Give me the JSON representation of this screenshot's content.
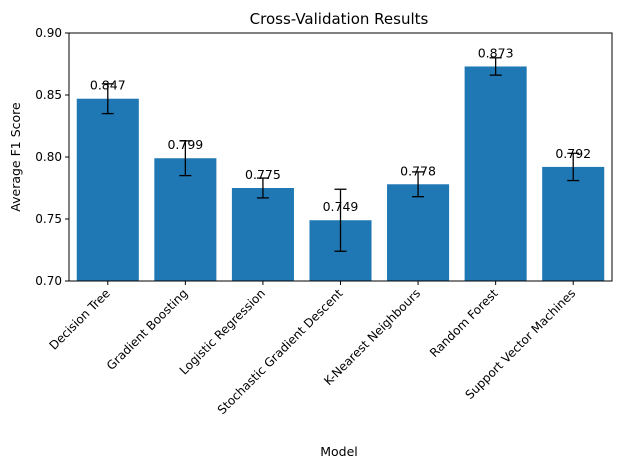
{
  "chart_data": {
    "type": "bar",
    "title": "Cross-Validation Results",
    "xlabel": "Model",
    "ylabel": "Average F1 Score",
    "ylim": [
      0.7,
      0.9
    ],
    "yticks": [
      "0.70",
      "0.75",
      "0.80",
      "0.85",
      "0.90"
    ],
    "categories": [
      "Decision Tree",
      "Gradient Boosting",
      "Logistic Regression",
      "Stochastic Gradient Descent",
      "K-Nearest Neighbours",
      "Random Forest",
      "Support Vector Machines"
    ],
    "values": [
      0.847,
      0.799,
      0.775,
      0.749,
      0.778,
      0.873,
      0.792
    ],
    "value_labels": [
      "0.847",
      "0.799",
      "0.775",
      "0.749",
      "0.778",
      "0.873",
      "0.792"
    ],
    "errors": [
      0.012,
      0.014,
      0.008,
      0.025,
      0.01,
      0.007,
      0.011
    ],
    "bar_color": "#1f77b4",
    "grid": false
  }
}
